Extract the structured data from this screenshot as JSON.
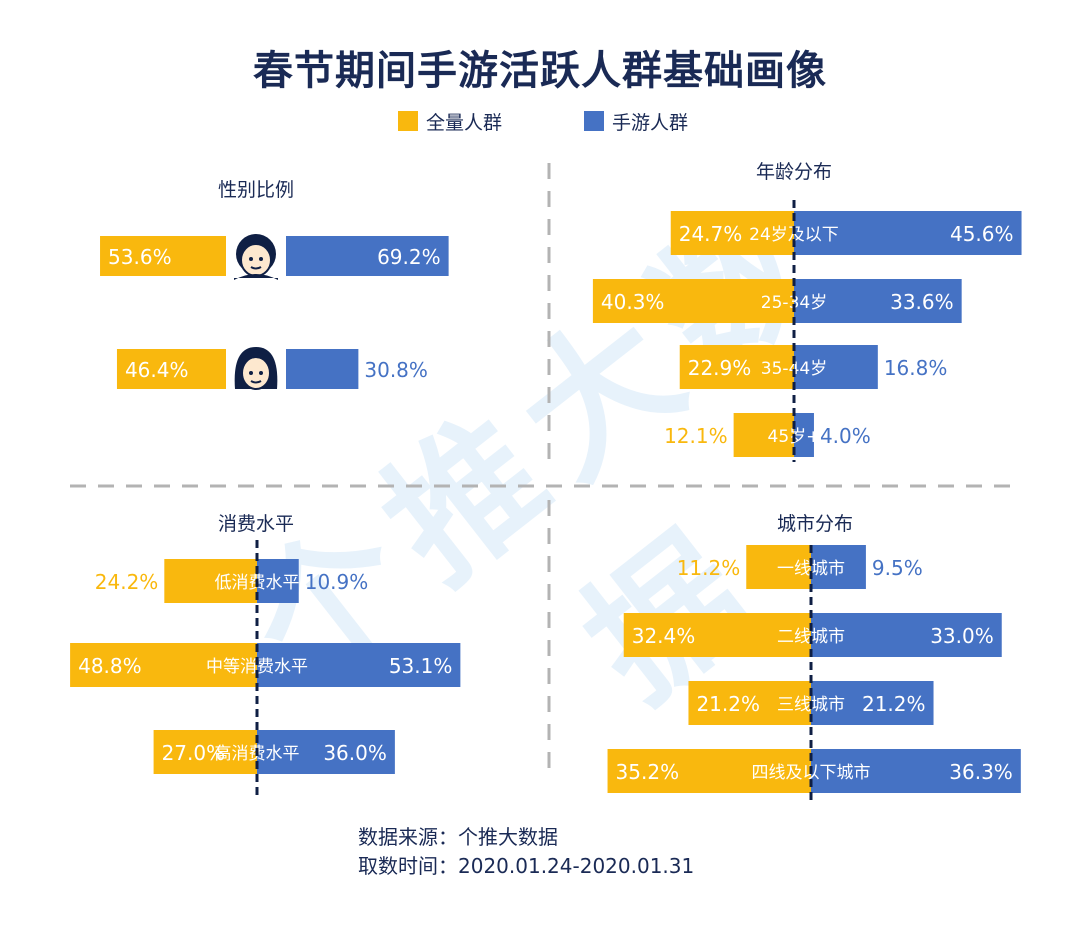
{
  "title": "春节期间手游活跃人群基础画像",
  "legend": [
    {
      "label": "全量人群",
      "color": "#F9B80E"
    },
    {
      "label": "手游人群",
      "color": "#4572C4"
    }
  ],
  "watermark": "个推大数据",
  "chart_data": [
    {
      "type": "bar",
      "title": "性别比例",
      "categories": [
        "男",
        "女"
      ],
      "series": [
        {
          "name": "全量人群",
          "values": [
            53.6,
            46.4
          ]
        },
        {
          "name": "手游人群",
          "values": [
            69.2,
            30.8
          ]
        }
      ],
      "value_labels": {
        "全量人群": [
          "53.6%",
          "46.4%"
        ],
        "手游人群": [
          "69.2%",
          "30.8%"
        ]
      }
    },
    {
      "type": "bar",
      "title": "年龄分布",
      "categories": [
        "24岁及以下",
        "25-34岁",
        "35-44岁",
        "45岁+"
      ],
      "series": [
        {
          "name": "全量人群",
          "values": [
            24.7,
            40.3,
            22.9,
            12.1
          ]
        },
        {
          "name": "手游人群",
          "values": [
            45.6,
            33.6,
            16.8,
            4.0
          ]
        }
      ],
      "value_labels": {
        "全量人群": [
          "24.7%",
          "40.3%",
          "22.9%",
          "12.1%"
        ],
        "手游人群": [
          "45.6%",
          "33.6%",
          "16.8%",
          "4.0%"
        ]
      }
    },
    {
      "type": "bar",
      "title": "消费水平",
      "categories": [
        "低消费水平",
        "中等消费水平",
        "高消费水平"
      ],
      "series": [
        {
          "name": "全量人群",
          "values": [
            24.2,
            48.8,
            27.0
          ]
        },
        {
          "name": "手游人群",
          "values": [
            10.9,
            53.1,
            36.0
          ]
        }
      ],
      "value_labels": {
        "全量人群": [
          "24.2%",
          "48.8%",
          "27.0%"
        ],
        "手游人群": [
          "10.9%",
          "53.1%",
          "36.0%"
        ]
      }
    },
    {
      "type": "bar",
      "title": "城市分布",
      "categories": [
        "一线城市",
        "二线城市",
        "三线城市",
        "四线及以下城市"
      ],
      "series": [
        {
          "name": "全量人群",
          "values": [
            11.2,
            32.4,
            21.2,
            35.2
          ]
        },
        {
          "name": "手游人群",
          "values": [
            9.5,
            33.0,
            21.2,
            36.3
          ]
        }
      ],
      "value_labels": {
        "全量人群": [
          "11.2%",
          "32.4%",
          "21.2%",
          "35.2%"
        ],
        "手游人群": [
          "9.5%",
          "33.0%",
          "21.2%",
          "36.3%"
        ]
      }
    }
  ],
  "footer": {
    "source": "数据来源：个推大数据",
    "time": "取数时间：2020.01.24-2020.01.31"
  }
}
